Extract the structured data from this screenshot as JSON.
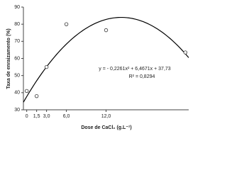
{
  "chart_data": {
    "type": "scatter",
    "y_label": "Taxa de enraizamento (%)",
    "x_label": "Dose de CaCl₂ (g.L⁻¹)",
    "x": [
      0,
      1.5,
      3,
      6,
      12,
      24
    ],
    "values": [
      41,
      38,
      55,
      80,
      76.5,
      63.5
    ],
    "color": "#ffffff",
    "xlim": [
      -0.5,
      24.5
    ],
    "xticks": [
      0,
      {
        "value": 1.5,
        "label": "1,5"
      },
      {
        "value": 3,
        "label": "3,0"
      },
      {
        "value": 6,
        "label": "6,0"
      },
      {
        "value": 12,
        "label": "12,0"
      }
    ],
    "ylim": [
      30,
      90
    ],
    "yticks": [
      30,
      40,
      50,
      60,
      70,
      80,
      90
    ],
    "trend": {
      "coefficients": [
        -0.2261,
        6.4671,
        37.73
      ],
      "equation": "y = - 0,2261x² + 6,4671x + 37,73",
      "r2": "R² = 0,8294"
    }
  }
}
